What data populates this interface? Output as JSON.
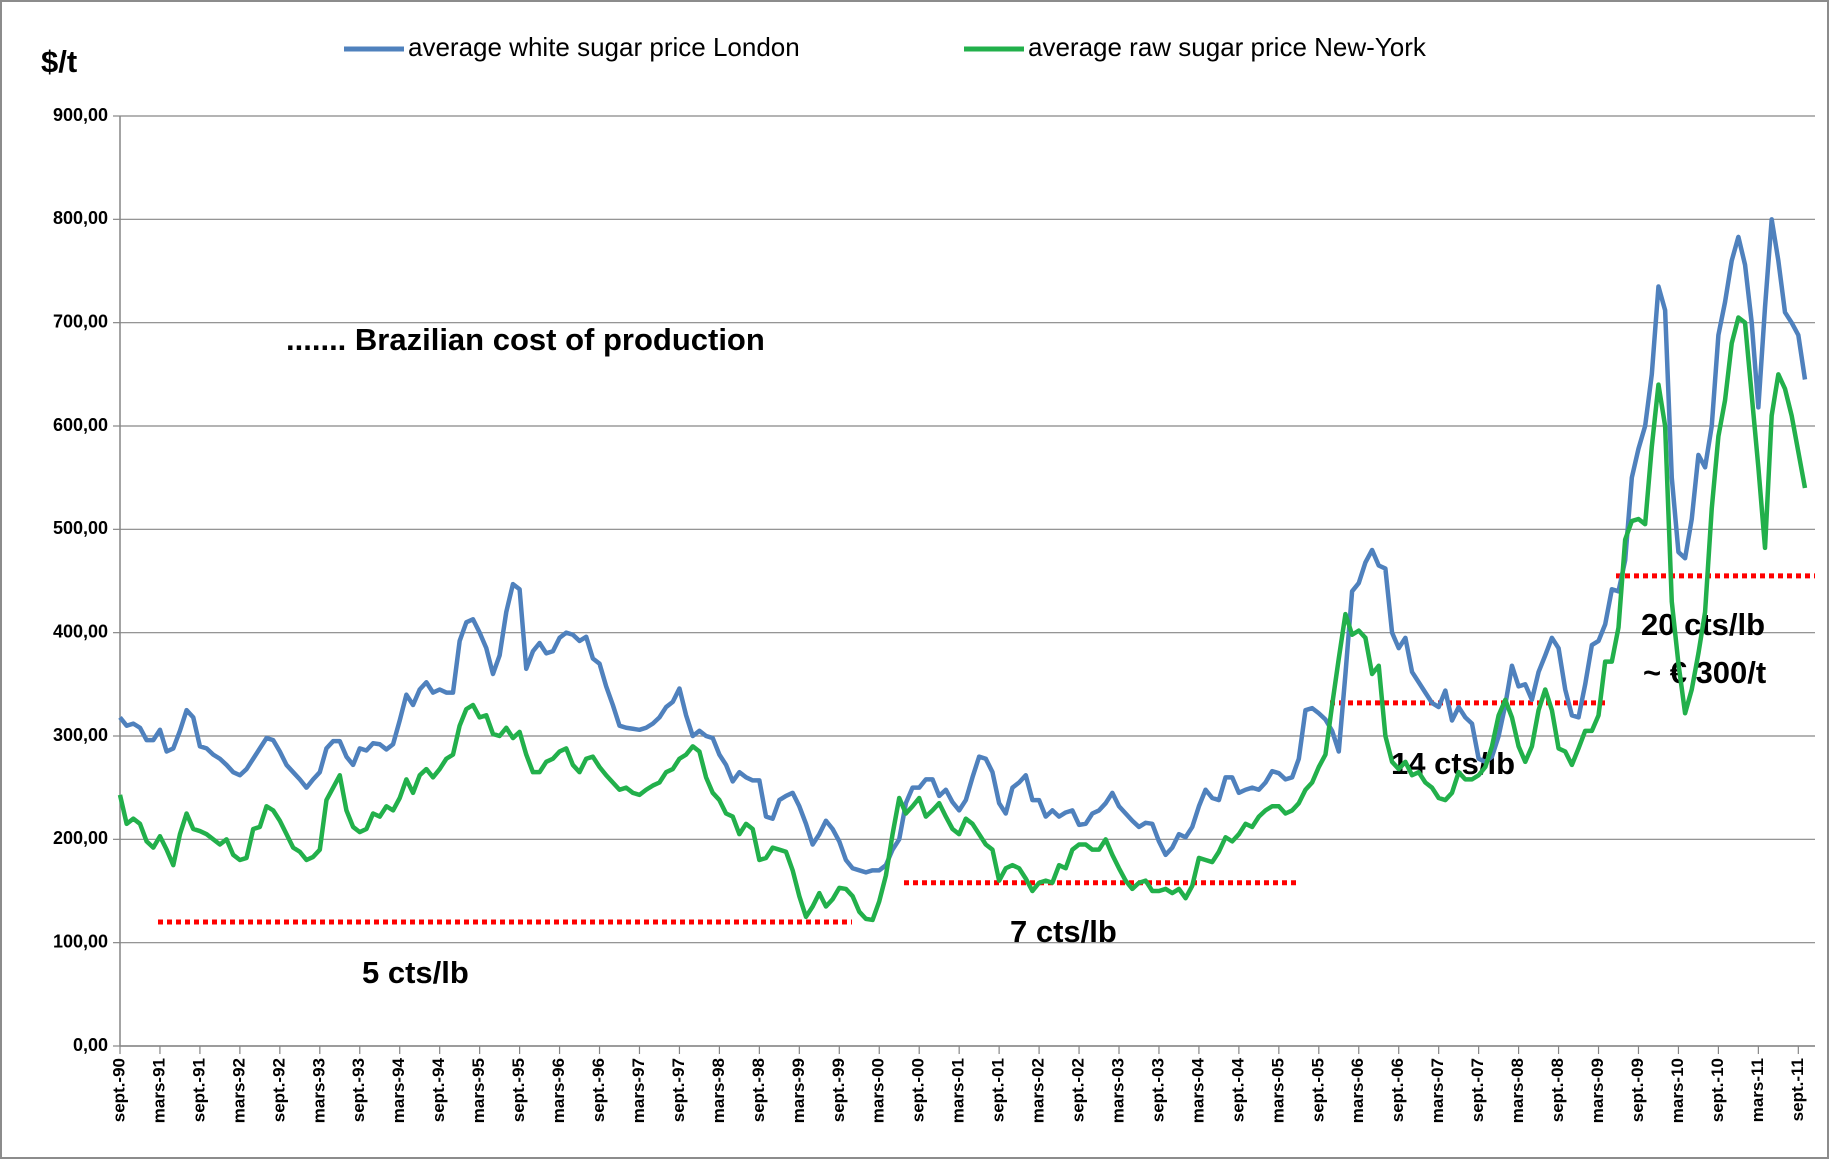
{
  "chart_data": {
    "type": "line",
    "y_label": "$/t",
    "ylim": [
      0,
      900
    ],
    "yticks": [
      {
        "value": 0,
        "label": "0,00"
      },
      {
        "value": 100,
        "label": "100,00"
      },
      {
        "value": 200,
        "label": "200,00"
      },
      {
        "value": 300,
        "label": "300,00"
      },
      {
        "value": 400,
        "label": "400,00"
      },
      {
        "value": 500,
        "label": "500,00"
      },
      {
        "value": 600,
        "label": "600,00"
      },
      {
        "value": 700,
        "label": "700,00"
      },
      {
        "value": 800,
        "label": "800,00"
      },
      {
        "value": 900,
        "label": "900,00"
      }
    ],
    "grid": true,
    "legend": "top",
    "annotation": "....... Brazilian cost of production",
    "annotation_color": "#ff0000",
    "reference_lines": [
      {
        "label": "5 cts/lb",
        "value": 120
      },
      {
        "label": "7 cts/lb",
        "value": 158
      },
      {
        "label": "14 cts/lb",
        "value": 332
      },
      {
        "label": "20 cts/lb",
        "note": "~ € 300/t",
        "value": 455
      }
    ],
    "categories": [
      "sept.-90",
      null,
      null,
      null,
      null,
      null,
      "mars-91",
      null,
      null,
      null,
      null,
      null,
      "sept.-91",
      null,
      null,
      null,
      null,
      null,
      "mars-92",
      null,
      null,
      null,
      null,
      null,
      "sept.-92",
      null,
      null,
      null,
      null,
      null,
      "mars-93",
      null,
      null,
      null,
      null,
      null,
      "sept.-93",
      null,
      null,
      null,
      null,
      null,
      "mars-94",
      null,
      null,
      null,
      null,
      null,
      "sept.-94",
      null,
      null,
      null,
      null,
      null,
      "mars-95",
      null,
      null,
      null,
      null,
      null,
      "sept.-95",
      null,
      null,
      null,
      null,
      null,
      "mars-96",
      null,
      null,
      null,
      null,
      null,
      "sept.-96",
      null,
      null,
      null,
      null,
      null,
      "mars-97",
      null,
      null,
      null,
      null,
      null,
      "sept.-97",
      null,
      null,
      null,
      null,
      null,
      "mars-98",
      null,
      null,
      null,
      null,
      null,
      "sept.-98",
      null,
      null,
      null,
      null,
      null,
      "mars-99",
      null,
      null,
      null,
      null,
      null,
      "sept.-99",
      null,
      null,
      null,
      null,
      null,
      "mars-00",
      null,
      null,
      null,
      null,
      null,
      "sept.-00",
      null,
      null,
      null,
      null,
      null,
      "mars-01",
      null,
      null,
      null,
      null,
      null,
      "sept.-01",
      null,
      null,
      null,
      null,
      null,
      "mars-02",
      null,
      null,
      null,
      null,
      null,
      "sept.-02",
      null,
      null,
      null,
      null,
      null,
      "mars-03",
      null,
      null,
      null,
      null,
      null,
      "sept.-03",
      null,
      null,
      null,
      null,
      null,
      "mars-04",
      null,
      null,
      null,
      null,
      null,
      "sept.-04",
      null,
      null,
      null,
      null,
      null,
      "mars-05",
      null,
      null,
      null,
      null,
      null,
      "sept.-05",
      null,
      null,
      null,
      null,
      null,
      "mars-06",
      null,
      null,
      null,
      null,
      null,
      "sept.-06",
      null,
      null,
      null,
      null,
      null,
      "mars-07",
      null,
      null,
      null,
      null,
      null,
      "sept.-07",
      null,
      null,
      null,
      null,
      null,
      "mars-08",
      null,
      null,
      null,
      null,
      null,
      "sept.-08",
      null,
      null,
      null,
      null,
      null,
      "mars-09",
      null,
      null,
      null,
      null,
      null,
      "sept.-09",
      null,
      null,
      null,
      null,
      null,
      "mars-10",
      null,
      null,
      null,
      null,
      null,
      "sept.-10",
      null,
      null,
      null,
      null,
      null,
      "mars-11",
      null,
      null,
      null,
      null,
      null,
      "sept.-11",
      null
    ],
    "series": [
      {
        "name": "average white sugar price London",
        "color": "#4f81bd",
        "values": [
          318,
          310,
          312,
          308,
          296,
          296,
          306,
          285,
          288,
          305,
          325,
          318,
          290,
          288,
          282,
          278,
          272,
          265,
          262,
          268,
          278,
          288,
          298,
          296,
          285,
          272,
          265,
          258,
          250,
          258,
          265,
          288,
          295,
          295,
          280,
          272,
          288,
          286,
          293,
          292,
          287,
          292,
          315,
          340,
          330,
          345,
          352,
          342,
          345,
          342,
          342,
          392,
          410,
          413,
          400,
          385,
          360,
          378,
          420,
          447,
          442,
          365,
          382,
          390,
          380,
          382,
          395,
          400,
          398,
          392,
          396,
          375,
          370,
          348,
          330,
          310,
          308,
          307,
          306,
          308,
          312,
          318,
          328,
          333,
          346,
          320,
          300,
          305,
          300,
          298,
          282,
          272,
          256,
          265,
          260,
          257,
          257,
          222,
          220,
          238,
          242,
          245,
          232,
          215,
          195,
          205,
          218,
          210,
          198,
          180,
          172,
          170,
          168,
          170,
          170,
          175,
          190,
          200,
          235,
          250,
          250,
          258,
          258,
          242,
          248,
          236,
          228,
          238,
          260,
          280,
          278,
          265,
          235,
          225,
          250,
          255,
          262,
          238,
          238,
          222,
          228,
          222,
          226,
          228,
          214,
          215,
          225,
          228,
          235,
          245,
          232,
          225,
          218,
          212,
          216,
          215,
          198,
          185,
          192,
          205,
          202,
          212,
          232,
          248,
          240,
          238,
          260,
          260,
          245,
          248,
          250,
          248,
          255,
          266,
          264,
          258,
          260,
          278,
          325,
          327,
          322,
          316,
          305,
          285,
          360,
          440,
          448,
          468,
          480,
          465,
          462,
          400,
          385,
          395,
          362,
          352,
          342,
          332,
          328,
          344,
          315,
          328,
          318,
          312,
          278,
          275,
          280,
          300,
          330,
          368,
          348,
          350,
          335,
          362,
          378,
          395,
          385,
          345,
          320,
          318,
          350,
          388,
          392,
          408,
          442,
          440,
          470,
          550,
          578,
          600,
          650,
          735,
          712,
          550,
          478,
          472,
          510,
          572,
          560,
          600,
          688,
          720,
          760,
          783,
          756,
          700,
          618,
          715,
          800,
          760,
          710,
          700,
          688,
          645
        ]
      },
      {
        "name": "average raw sugar price New-York",
        "color": "#22b04b",
        "values": [
          243,
          215,
          220,
          215,
          198,
          192,
          203,
          190,
          175,
          205,
          225,
          210,
          208,
          205,
          200,
          195,
          200,
          185,
          180,
          182,
          210,
          212,
          232,
          228,
          218,
          205,
          192,
          188,
          180,
          183,
          190,
          238,
          250,
          262,
          228,
          212,
          207,
          210,
          225,
          222,
          232,
          228,
          240,
          258,
          245,
          262,
          268,
          260,
          268,
          278,
          282,
          310,
          326,
          330,
          318,
          320,
          302,
          300,
          308,
          298,
          304,
          282,
          265,
          265,
          275,
          278,
          285,
          288,
          272,
          265,
          278,
          280,
          270,
          262,
          255,
          248,
          250,
          245,
          243,
          248,
          252,
          255,
          265,
          268,
          278,
          282,
          290,
          285,
          260,
          245,
          238,
          225,
          222,
          205,
          215,
          210,
          180,
          182,
          192,
          190,
          188,
          170,
          145,
          125,
          135,
          148,
          135,
          142,
          153,
          152,
          145,
          130,
          123,
          122,
          140,
          165,
          205,
          240,
          225,
          232,
          240,
          222,
          228,
          235,
          222,
          210,
          205,
          220,
          215,
          205,
          195,
          190,
          160,
          172,
          175,
          172,
          162,
          150,
          158,
          160,
          158,
          175,
          172,
          190,
          195,
          195,
          190,
          190,
          200,
          185,
          172,
          160,
          152,
          158,
          160,
          150,
          150,
          152,
          148,
          152,
          143,
          155,
          182,
          180,
          178,
          188,
          202,
          198,
          205,
          215,
          212,
          222,
          228,
          232,
          232,
          225,
          228,
          235,
          248,
          255,
          270,
          282,
          330,
          375,
          418,
          398,
          402,
          395,
          360,
          368,
          300,
          275,
          268,
          275,
          262,
          265,
          255,
          250,
          240,
          238,
          245,
          265,
          258,
          258,
          262,
          270,
          290,
          320,
          335,
          318,
          290,
          275,
          290,
          325,
          345,
          325,
          288,
          285,
          272,
          288,
          305,
          305,
          320,
          372,
          372,
          405,
          490,
          508,
          510,
          505,
          580,
          640,
          600,
          430,
          370,
          322,
          345,
          380,
          420,
          520,
          590,
          625,
          680,
          705,
          700,
          630,
          560,
          482,
          610,
          650,
          636,
          610,
          575,
          540
        ]
      }
    ]
  }
}
